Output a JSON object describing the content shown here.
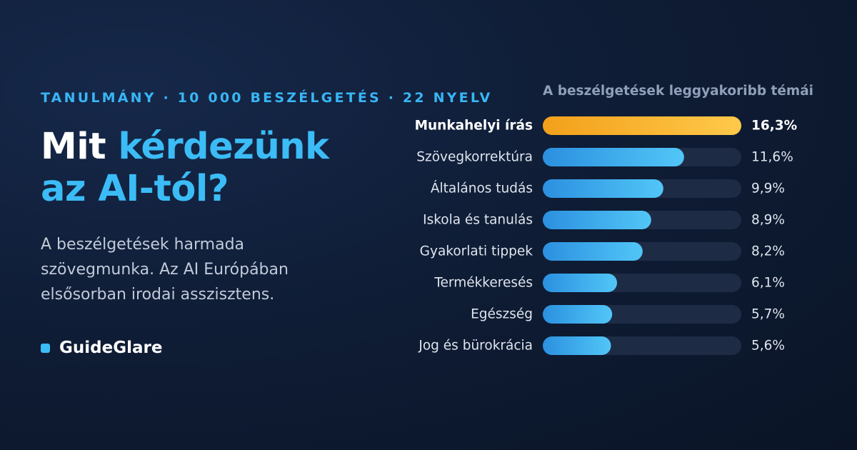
{
  "eyebrow": "TANULMÁNY · 10 000 BESZÉLGETÉS · 22 NYELV",
  "headline": {
    "part1": "Mit ",
    "part1_accent": "kérdezünk",
    "part2_accent": "az AI-tól?"
  },
  "lead": "A beszélgetések harmada szövegmunka. Az AI Európában elsősorban irodai asszisztens.",
  "brand": {
    "name": "GuideGlare"
  },
  "colors": {
    "accent": "#3bbcf6",
    "highlight_start": "#f2a01a",
    "highlight_end": "#ffc94a",
    "bar_start": "#2b90e0",
    "bar_end": "#52c6f7",
    "track": "#1d2b45"
  },
  "chart_data": {
    "type": "bar",
    "orientation": "horizontal",
    "title": "A beszélgetések leggyakoribb témái",
    "categories": [
      "Munkahelyi írás",
      "Szövegkorrektúra",
      "Általános tudás",
      "Iskola és tanulás",
      "Gyakorlati tippek",
      "Termékkeresés",
      "Egészség",
      "Jog és bürokrácia"
    ],
    "values": [
      16.3,
      11.6,
      9.9,
      8.9,
      8.2,
      6.1,
      5.7,
      5.6
    ],
    "value_labels": [
      "16,3%",
      "11,6%",
      "9,9%",
      "8,9%",
      "8,2%",
      "6,1%",
      "5,7%",
      "5,6%"
    ],
    "highlighted": "Munkahelyi írás",
    "xlim": [
      0,
      16.3
    ],
    "xlabel": "",
    "ylabel": "",
    "grid": false,
    "legend": "none"
  }
}
